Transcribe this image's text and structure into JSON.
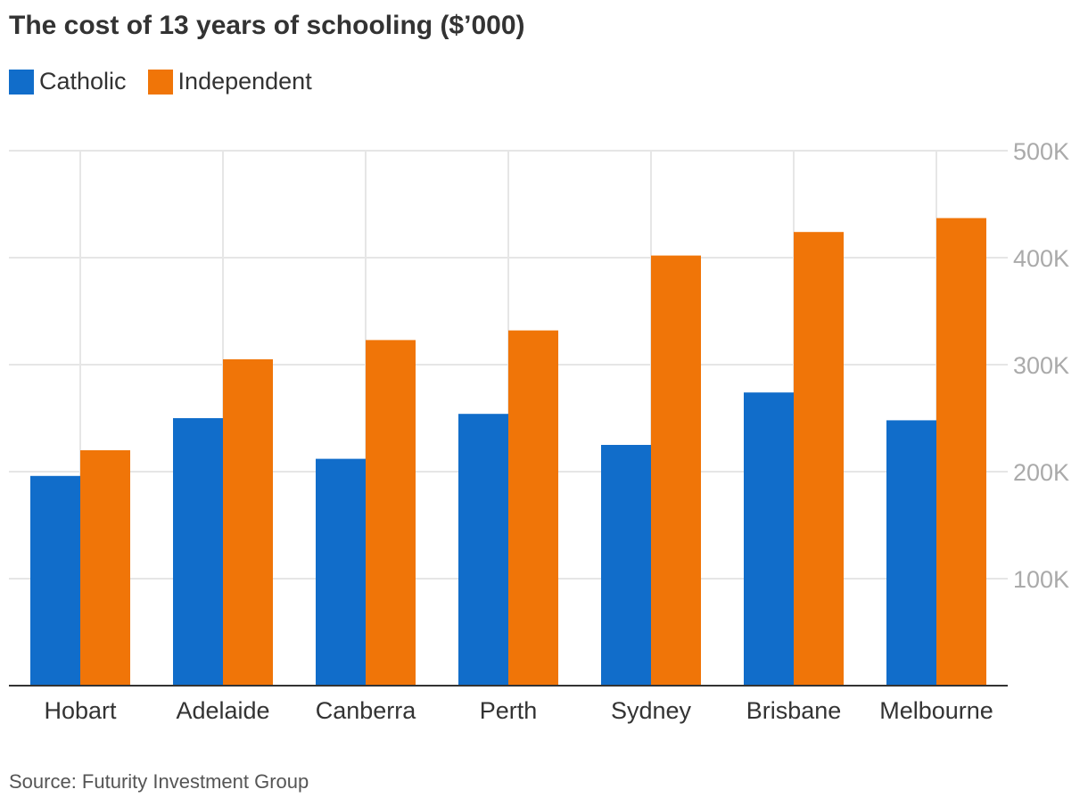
{
  "title": "The cost of 13 years of schooling ($’000)",
  "source": "Source: Futurity Investment Group",
  "colors": {
    "catholic": "#116dca",
    "independent": "#f07508",
    "grid": "#e6e6e6",
    "axis": "#333333",
    "tick_label": "#aaaaaa",
    "category_label": "#333333"
  },
  "chart_data": {
    "type": "bar",
    "title": "The cost of 13 years of schooling ($’000)",
    "categories": [
      "Hobart",
      "Adelaide",
      "Canberra",
      "Perth",
      "Sydney",
      "Brisbane",
      "Melbourne"
    ],
    "series": [
      {
        "name": "Catholic",
        "color": "#116dca",
        "values": [
          196,
          250,
          212,
          254,
          225,
          274,
          248
        ]
      },
      {
        "name": "Independent",
        "color": "#f07508",
        "values": [
          220,
          305,
          323,
          332,
          402,
          424,
          437
        ]
      }
    ],
    "y_ticks": [
      100,
      200,
      300,
      400,
      500
    ],
    "y_tick_labels": [
      "100K",
      "200K",
      "300K",
      "400K",
      "500K"
    ],
    "ylim": [
      0,
      500
    ],
    "xlabel": "",
    "ylabel": "",
    "grid": true,
    "legend_position": "top-left"
  }
}
